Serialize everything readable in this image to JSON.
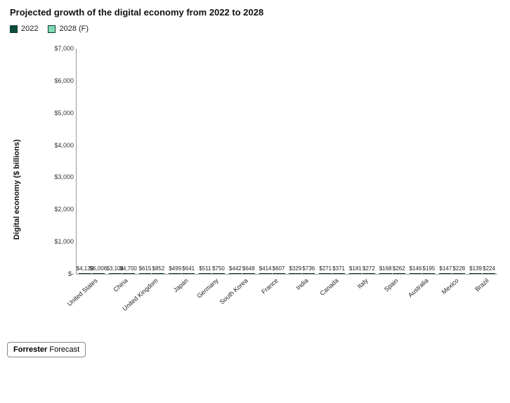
{
  "title": "Projected growth of the digital economy from 2022 to 2028",
  "ylabel": "Digital economy ($ billions)",
  "legend": [
    {
      "label": "2022",
      "color": "#0b4d3a"
    },
    {
      "label": "2028 (F)",
      "color": "#7fd9b3"
    }
  ],
  "chart": {
    "type": "grouped-bar",
    "ymin": 0,
    "ymax": 7000,
    "ytick_step": 1000,
    "ytick_prefix": "$",
    "ytick_suffix": "",
    "ytick_thousand_sep": ",",
    "value_prefix": "$",
    "value_thousand_sep": ",",
    "bg": "#ffffff",
    "bar_border": "#0a3a2a",
    "series": [
      {
        "key": "y2022",
        "color": "#0b4d3a"
      },
      {
        "key": "y2028",
        "color": "#7fd9b3"
      }
    ],
    "categories": [
      {
        "name": "United States",
        "y2022": 4139,
        "y2028": 6006
      },
      {
        "name": "China",
        "y2022": 3104,
        "y2028": 4700
      },
      {
        "name": "United Kingdom",
        "y2022": 615,
        "y2028": 852
      },
      {
        "name": "Japan",
        "y2022": 499,
        "y2028": 641
      },
      {
        "name": "Germany",
        "y2022": 511,
        "y2028": 750
      },
      {
        "name": "South Korea",
        "y2022": 442,
        "y2028": 648
      },
      {
        "name": "France",
        "y2022": 414,
        "y2028": 607
      },
      {
        "name": "India",
        "y2022": 329,
        "y2028": 736
      },
      {
        "name": "Canada",
        "y2022": 271,
        "y2028": 371
      },
      {
        "name": "Italy",
        "y2022": 181,
        "y2028": 272
      },
      {
        "name": "Spain",
        "y2022": 168,
        "y2028": 262
      },
      {
        "name": "Australia",
        "y2022": 146,
        "y2028": 195
      },
      {
        "name": "Mexico",
        "y2022": 147,
        "y2028": 228
      },
      {
        "name": "Brazil",
        "y2022": 139,
        "y2028": 224
      }
    ]
  },
  "source": {
    "brand": "Forrester",
    "text": " Forecast"
  }
}
